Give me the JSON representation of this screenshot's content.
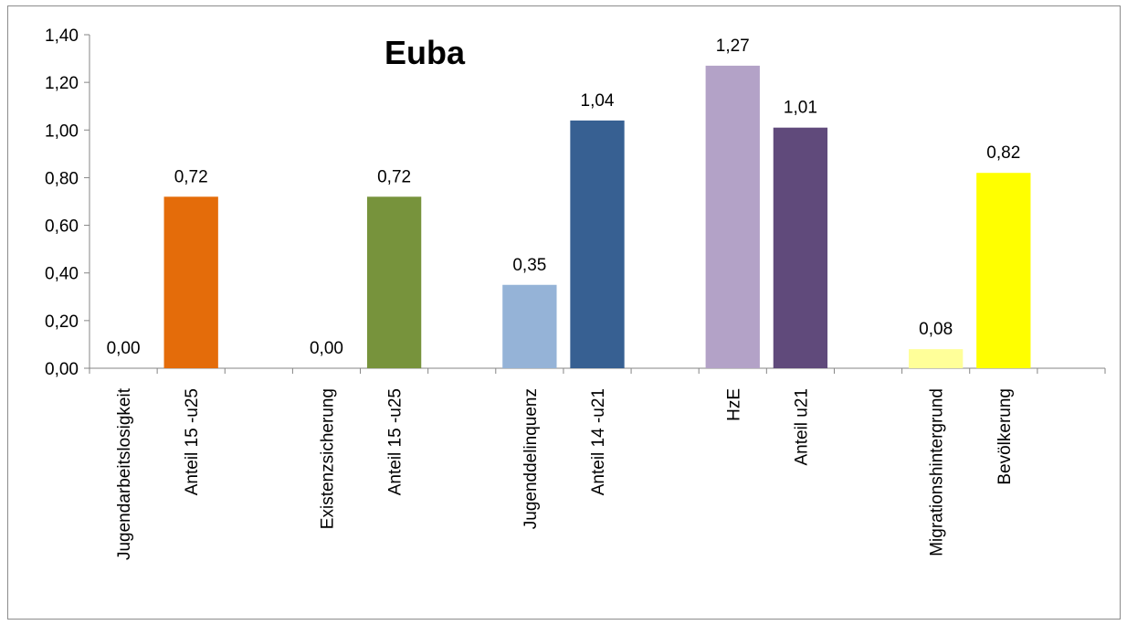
{
  "chart_data": {
    "type": "bar",
    "title": "Euba",
    "xlabel": "",
    "ylabel": "",
    "ylim": [
      0,
      1.4
    ],
    "yticks": [
      "0,00",
      "0,20",
      "0,40",
      "0,60",
      "0,80",
      "1,00",
      "1,20",
      "1,40"
    ],
    "grid": false,
    "legend": "none",
    "categories": [
      "Jugendarbeitslosigkeit",
      "Anteil  15 -u25",
      "Existenzsicherung",
      "Anteil 15 -u25",
      "Jugenddelinquenz",
      "Anteil 14 -u21",
      "HzE",
      "Anteil u21",
      "Migrationshintergrund",
      "Bevölkerung"
    ],
    "values": [
      0.0,
      0.72,
      0.0,
      0.72,
      0.35,
      1.04,
      1.27,
      1.01,
      0.08,
      0.82
    ],
    "value_labels": [
      "0,00",
      "0,72",
      "0,00",
      "0,72",
      "0,35",
      "1,04",
      "1,27",
      "1,01",
      "0,08",
      "0,82"
    ],
    "colors": [
      "#e46c0a",
      "#e46c0a",
      "#77933c",
      "#77933c",
      "#95b3d7",
      "#376092",
      "#b3a2c7",
      "#604a7b",
      "#ffff99",
      "#ffff00"
    ]
  }
}
